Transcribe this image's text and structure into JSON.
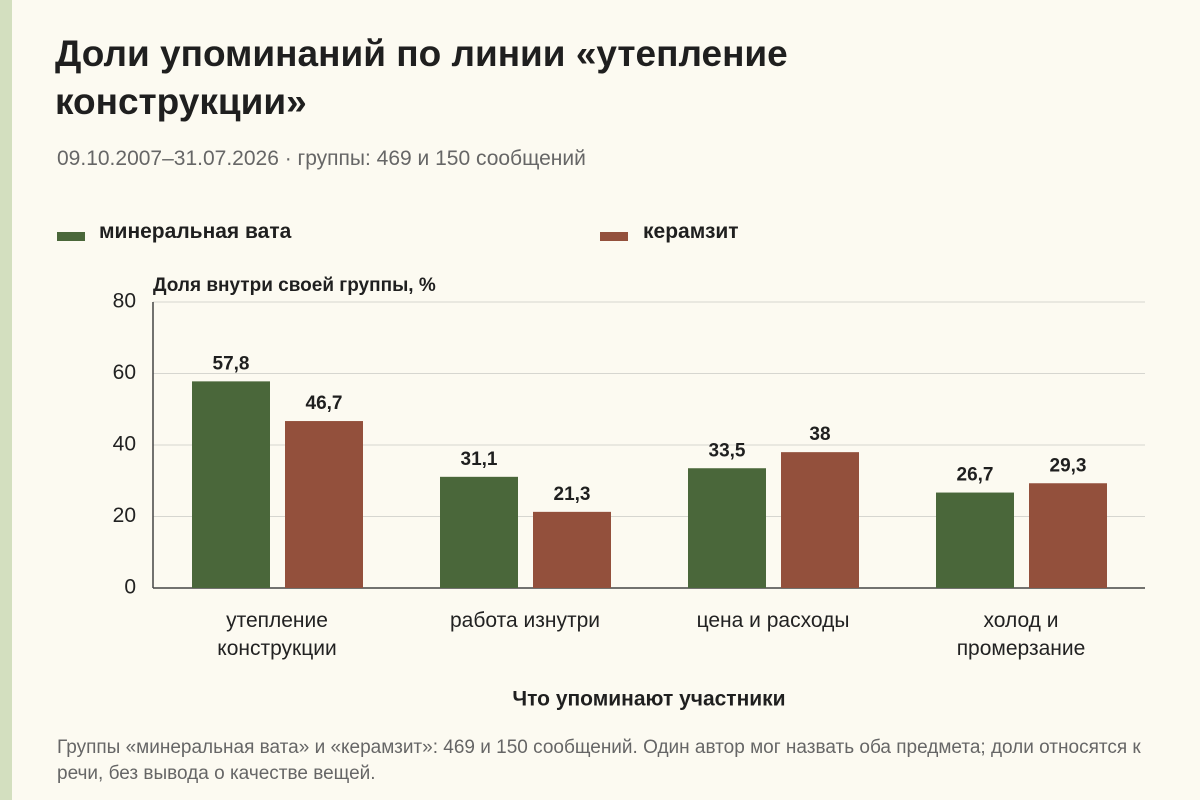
{
  "chart_data": {
    "type": "bar",
    "title": "Доли упоминаний по линии «утепление конструкции»",
    "subtitle": "09.10.2007–31.07.2026 · группы: 469 и 150 сообщений",
    "y_label": "Доля внутри своей группы, %",
    "x_label": "Что упоминают участники",
    "note": "Группы «минеральная вата» и «керамзит»: 469 и 150 сообщений. Один автор мог назвать оба предмета; доли относятся к речи, без вывода о качестве вещей.",
    "categories": [
      "утепление конструкции",
      "работа изнутри",
      "цена и расходы",
      "холод и промерзание"
    ],
    "series": [
      {
        "name": "минеральная вата",
        "color": "#4a673a",
        "values": [
          57.8,
          31.1,
          33.5,
          26.7
        ],
        "value_labels": [
          "57,8",
          "31,1",
          "33,5",
          "26,7"
        ]
      },
      {
        "name": "керамзит",
        "color": "#93503c",
        "values": [
          46.7,
          21.3,
          38,
          29.3
        ],
        "value_labels": [
          "46,7",
          "21,3",
          "38",
          "29,3"
        ]
      }
    ],
    "ylim": [
      0,
      80
    ],
    "yticks": [
      0,
      20,
      40,
      60,
      80
    ],
    "grid": true
  }
}
